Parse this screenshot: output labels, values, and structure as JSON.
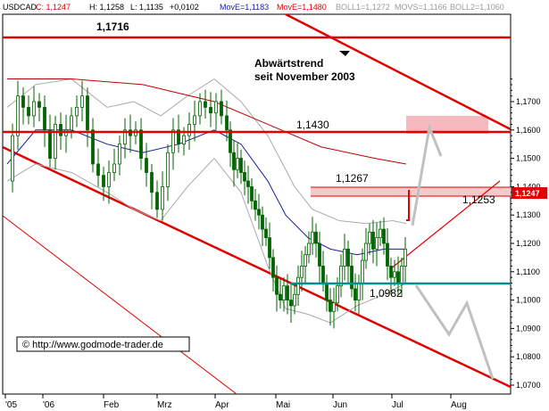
{
  "chart_data": {
    "type": "candlestick",
    "header": {
      "symbol": "USDCAD",
      "close": "C: 1,1247",
      "high": "H: 1,1258",
      "low": "L: 1,1135",
      "change": "+0,0102",
      "move1": "MovE=1,1183",
      "move2": "MovE=1,1480",
      "boll1": "BOLL1=1,1272",
      "movs": "MOVS=1,1166",
      "boll2": "BOLL2=1,1060"
    },
    "last_price_label": "1,1247",
    "x_ticks": [
      "'05",
      "'06",
      "Feb",
      "Mrz",
      "Apr",
      "Mai",
      "Jun",
      "Jul",
      "Aug"
    ],
    "y_ticks": [
      "1,0700",
      "1,0800",
      "1,0900",
      "1,1000",
      "1,1100",
      "1,1200",
      "1,1300",
      "1,1400",
      "1,1500",
      "1,1600",
      "1,1700"
    ],
    "ylim": [
      1.0675,
      1.1795
    ],
    "annotations": {
      "peak": "1,1716",
      "trend_line1": "Abwärtstrend",
      "trend_line2": "seit November 2003",
      "level_1430": "1,1430",
      "level_1267": "1,1267",
      "level_1253": "1,1253",
      "level_0982": "1,0982"
    },
    "horizontal_levels": [
      1.1716,
      1.143,
      1.1267,
      1.1253,
      1.0982
    ],
    "copyright": "© http://www.godmode-trader.de",
    "colors": {
      "candle": "#006400",
      "move_short": "#1a1aa0",
      "move_long": "#c00000",
      "boll": "#a9a9a9",
      "levels": "#e00000",
      "support": "#009090",
      "box": "#f6b9bf",
      "scenario": "#c0c0c0"
    }
  }
}
